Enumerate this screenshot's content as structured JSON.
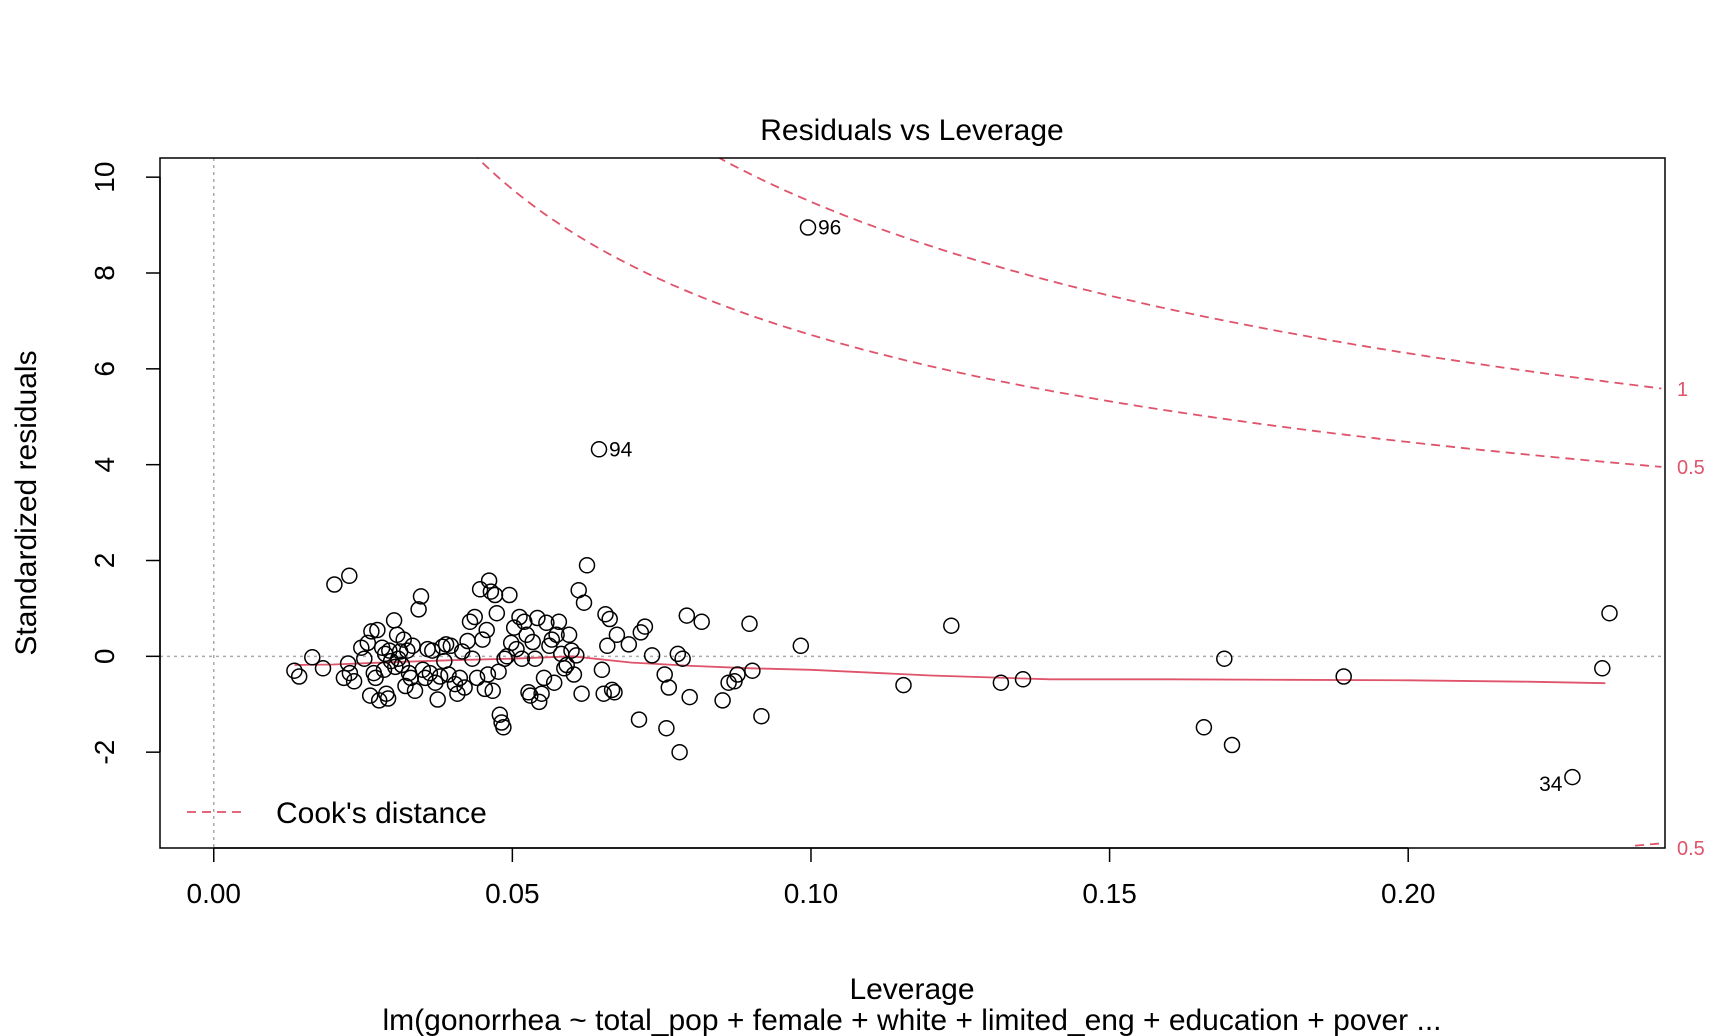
{
  "colors": {
    "cook": "#DF536B",
    "points": "#000000",
    "ref_line": "#AAAAAA"
  },
  "chart_data": {
    "type": "scatter",
    "title": "Residuals vs Leverage",
    "xlabel": "Leverage",
    "ylabel": "Standardized residuals",
    "subtitle": "lm(gonorrhea ~ total_pop + female + white + limited_eng + education + pover ...",
    "xlim": [
      -0.009,
      0.243
    ],
    "ylim": [
      -4.0,
      10.4
    ],
    "x_ticks": [
      0.0,
      0.05,
      0.1,
      0.15,
      0.2
    ],
    "x_tick_labels": [
      "0.00",
      "0.05",
      "0.10",
      "0.15",
      "0.20"
    ],
    "y_ticks": [
      -2,
      0,
      2,
      4,
      6,
      8,
      10
    ],
    "y_tick_labels": [
      "-2",
      "0",
      "2",
      "4",
      "6",
      "8",
      "10"
    ],
    "legend": {
      "label": "Cook's distance",
      "position": "bottom-left"
    },
    "cook_params": {
      "p": 10
    },
    "cook_contours": [
      {
        "level": 0.5,
        "label": "0.5"
      },
      {
        "level": 1,
        "label": "1"
      }
    ],
    "cook_bottom_label": "0.5",
    "point_labels": [
      {
        "text": "96",
        "x": 0.0995,
        "y": 8.95,
        "side": "right"
      },
      {
        "text": "94",
        "x": 0.0645,
        "y": 4.32,
        "side": "right"
      },
      {
        "text": "34",
        "x": 0.2275,
        "y": -2.52,
        "side": "left"
      }
    ],
    "smooth": {
      "x": [
        0.0135,
        0.02,
        0.03,
        0.04,
        0.05,
        0.06,
        0.07,
        0.08,
        0.09,
        0.1,
        0.12,
        0.14,
        0.16,
        0.18,
        0.2,
        0.22,
        0.233
      ],
      "y": [
        -0.18,
        -0.17,
        -0.12,
        -0.08,
        -0.05,
        0.0,
        -0.13,
        -0.2,
        -0.25,
        -0.28,
        -0.4,
        -0.48,
        -0.48,
        -0.49,
        -0.5,
        -0.53,
        -0.56
      ]
    },
    "points": [
      [
        0.0135,
        -0.3
      ],
      [
        0.0143,
        -0.42
      ],
      [
        0.0165,
        -0.02
      ],
      [
        0.0183,
        -0.25
      ],
      [
        0.0202,
        1.5
      ],
      [
        0.0227,
        1.68
      ],
      [
        0.0225,
        -0.15
      ],
      [
        0.0228,
        -0.35
      ],
      [
        0.0235,
        -0.52
      ],
      [
        0.0218,
        -0.45
      ],
      [
        0.0247,
        0.18
      ],
      [
        0.0252,
        -0.05
      ],
      [
        0.0258,
        0.28
      ],
      [
        0.0262,
        -0.82
      ],
      [
        0.0264,
        0.52
      ],
      [
        0.0268,
        -0.35
      ],
      [
        0.0271,
        -0.45
      ],
      [
        0.0274,
        0.55
      ],
      [
        0.0277,
        -0.92
      ],
      [
        0.0282,
        0.18
      ],
      [
        0.0285,
        -0.28
      ],
      [
        0.0287,
        0.05
      ],
      [
        0.0289,
        -0.78
      ],
      [
        0.0292,
        -0.88
      ],
      [
        0.0294,
        0.12
      ],
      [
        0.0297,
        -0.1
      ],
      [
        0.0302,
        0.75
      ],
      [
        0.0304,
        -0.22
      ],
      [
        0.0307,
        0.45
      ],
      [
        0.0309,
        -0.05
      ],
      [
        0.0312,
        0.1
      ],
      [
        0.0315,
        -0.18
      ],
      [
        0.0318,
        0.35
      ],
      [
        0.0321,
        -0.62
      ],
      [
        0.0324,
        0.12
      ],
      [
        0.0327,
        -0.35
      ],
      [
        0.033,
        -0.45
      ],
      [
        0.0333,
        0.22
      ],
      [
        0.0337,
        -0.72
      ],
      [
        0.0343,
        0.98
      ],
      [
        0.0347,
        1.25
      ],
      [
        0.035,
        -0.28
      ],
      [
        0.0354,
        -0.45
      ],
      [
        0.0358,
        0.15
      ],
      [
        0.0362,
        -0.35
      ],
      [
        0.0366,
        0.12
      ],
      [
        0.0371,
        -0.55
      ],
      [
        0.0375,
        -0.9
      ],
      [
        0.0379,
        -0.42
      ],
      [
        0.0383,
        0.2
      ],
      [
        0.0386,
        -0.1
      ],
      [
        0.0389,
        0.25
      ],
      [
        0.0393,
        -0.38
      ],
      [
        0.0397,
        0.22
      ],
      [
        0.0404,
        -0.58
      ],
      [
        0.0408,
        -0.78
      ],
      [
        0.0412,
        -0.45
      ],
      [
        0.0416,
        0.1
      ],
      [
        0.042,
        -0.65
      ],
      [
        0.0425,
        0.32
      ],
      [
        0.0429,
        0.72
      ],
      [
        0.0433,
        -0.05
      ],
      [
        0.0437,
        0.82
      ],
      [
        0.0441,
        -0.45
      ],
      [
        0.0446,
        1.4
      ],
      [
        0.045,
        0.35
      ],
      [
        0.0454,
        -0.68
      ],
      [
        0.0457,
        0.55
      ],
      [
        0.0459,
        -0.38
      ],
      [
        0.0461,
        1.58
      ],
      [
        0.0464,
        1.35
      ],
      [
        0.0467,
        -0.72
      ],
      [
        0.0471,
        1.28
      ],
      [
        0.0474,
        0.9
      ],
      [
        0.0477,
        -0.32
      ],
      [
        0.0479,
        -1.22
      ],
      [
        0.0482,
        -1.38
      ],
      [
        0.0485,
        -1.48
      ],
      [
        0.0487,
        -0.05
      ],
      [
        0.0491,
        0.0
      ],
      [
        0.0495,
        1.28
      ],
      [
        0.0498,
        0.28
      ],
      [
        0.0503,
        0.6
      ],
      [
        0.0507,
        0.15
      ],
      [
        0.0512,
        0.82
      ],
      [
        0.0516,
        -0.05
      ],
      [
        0.052,
        0.72
      ],
      [
        0.0524,
        0.45
      ],
      [
        0.0527,
        -0.75
      ],
      [
        0.053,
        -0.82
      ],
      [
        0.0534,
        0.3
      ],
      [
        0.0538,
        -0.05
      ],
      [
        0.0542,
        0.8
      ],
      [
        0.0545,
        -0.95
      ],
      [
        0.0549,
        -0.78
      ],
      [
        0.0553,
        -0.45
      ],
      [
        0.0557,
        0.7
      ],
      [
        0.0562,
        0.22
      ],
      [
        0.0566,
        0.35
      ],
      [
        0.057,
        -0.55
      ],
      [
        0.0574,
        0.45
      ],
      [
        0.0578,
        0.72
      ],
      [
        0.0582,
        0.05
      ],
      [
        0.0587,
        -0.25
      ],
      [
        0.0591,
        -0.18
      ],
      [
        0.0595,
        0.45
      ],
      [
        0.0599,
        0.12
      ],
      [
        0.0603,
        -0.38
      ],
      [
        0.0607,
        0.02
      ],
      [
        0.0611,
        1.38
      ],
      [
        0.0616,
        -0.78
      ],
      [
        0.062,
        1.12
      ],
      [
        0.0625,
        1.9
      ],
      [
        0.0645,
        4.32
      ],
      [
        0.065,
        -0.28
      ],
      [
        0.0653,
        -0.78
      ],
      [
        0.0656,
        0.88
      ],
      [
        0.0659,
        0.22
      ],
      [
        0.0663,
        0.78
      ],
      [
        0.0667,
        -0.7
      ],
      [
        0.0671,
        -0.75
      ],
      [
        0.0675,
        0.45
      ],
      [
        0.0695,
        0.25
      ],
      [
        0.0712,
        -1.32
      ],
      [
        0.0715,
        0.5
      ],
      [
        0.0722,
        0.62
      ],
      [
        0.0734,
        0.02
      ],
      [
        0.0755,
        -0.38
      ],
      [
        0.0758,
        -1.5
      ],
      [
        0.0762,
        -0.65
      ],
      [
        0.0777,
        0.05
      ],
      [
        0.078,
        -2.0
      ],
      [
        0.0785,
        -0.05
      ],
      [
        0.0792,
        0.85
      ],
      [
        0.0797,
        -0.85
      ],
      [
        0.0817,
        0.72
      ],
      [
        0.0862,
        -0.55
      ],
      [
        0.0852,
        -0.92
      ],
      [
        0.0872,
        -0.52
      ],
      [
        0.0877,
        -0.38
      ],
      [
        0.0897,
        0.68
      ],
      [
        0.0902,
        -0.3
      ],
      [
        0.0917,
        -1.25
      ],
      [
        0.0983,
        0.22
      ],
      [
        0.0995,
        8.95
      ],
      [
        0.1155,
        -0.6
      ],
      [
        0.1235,
        0.64
      ],
      [
        0.1318,
        -0.55
      ],
      [
        0.1355,
        -0.48
      ],
      [
        0.1658,
        -1.48
      ],
      [
        0.1692,
        -0.05
      ],
      [
        0.1705,
        -1.85
      ],
      [
        0.1892,
        -0.42
      ],
      [
        0.2275,
        -2.52
      ],
      [
        0.2325,
        -0.25
      ],
      [
        0.2337,
        0.9
      ]
    ]
  }
}
